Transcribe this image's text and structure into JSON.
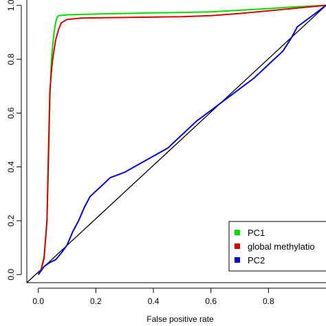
{
  "chart_data": {
    "type": "line",
    "title": "",
    "xlabel": "False positive rate",
    "ylabel": "",
    "xlim": [
      -0.04,
      1.0
    ],
    "ylim": [
      -0.03,
      1.02
    ],
    "x_ticks": [
      0.0,
      0.2,
      0.4,
      0.6,
      0.8
    ],
    "x_tick_labels": [
      "0.0",
      "0.2",
      "0.4",
      "0.6",
      "0.8"
    ],
    "y_ticks": [
      0.0,
      0.2,
      0.4,
      0.6,
      0.8,
      1.0
    ],
    "y_tick_labels": [
      "0.0",
      "0.2",
      "0.4",
      "0.6",
      "0.8",
      "1.0"
    ],
    "grid": false,
    "legend_position": "bottom-right",
    "series": [
      {
        "name": "PC1",
        "color": "#00dd00",
        "points": [
          [
            0.0,
            0.0
          ],
          [
            0.01,
            0.02
          ],
          [
            0.02,
            0.07
          ],
          [
            0.03,
            0.2
          ],
          [
            0.035,
            0.4
          ],
          [
            0.04,
            0.65
          ],
          [
            0.045,
            0.79
          ],
          [
            0.05,
            0.85
          ],
          [
            0.055,
            0.9
          ],
          [
            0.06,
            0.935
          ],
          [
            0.065,
            0.955
          ],
          [
            0.07,
            0.962
          ],
          [
            0.1,
            0.965
          ],
          [
            0.2,
            0.968
          ],
          [
            0.4,
            0.972
          ],
          [
            0.6,
            0.976
          ],
          [
            0.8,
            0.988
          ],
          [
            0.9,
            0.995
          ],
          [
            1.0,
            1.0
          ]
        ]
      },
      {
        "name": "global methylatio",
        "color": "#dd0000",
        "points": [
          [
            0.0,
            0.0
          ],
          [
            0.01,
            0.02
          ],
          [
            0.02,
            0.06
          ],
          [
            0.03,
            0.2
          ],
          [
            0.035,
            0.45
          ],
          [
            0.04,
            0.68
          ],
          [
            0.045,
            0.75
          ],
          [
            0.05,
            0.8
          ],
          [
            0.06,
            0.87
          ],
          [
            0.07,
            0.91
          ],
          [
            0.08,
            0.935
          ],
          [
            0.1,
            0.948
          ],
          [
            0.15,
            0.953
          ],
          [
            0.3,
            0.955
          ],
          [
            0.5,
            0.958
          ],
          [
            0.6,
            0.962
          ],
          [
            0.7,
            0.97
          ],
          [
            0.8,
            0.98
          ],
          [
            0.9,
            0.99
          ],
          [
            1.0,
            1.0
          ]
        ]
      },
      {
        "name": "PC2",
        "color": "#0000dd",
        "points": [
          [
            0.0,
            0.0
          ],
          [
            0.02,
            0.03
          ],
          [
            0.04,
            0.045
          ],
          [
            0.06,
            0.055
          ],
          [
            0.08,
            0.08
          ],
          [
            0.1,
            0.11
          ],
          [
            0.12,
            0.16
          ],
          [
            0.14,
            0.2
          ],
          [
            0.16,
            0.25
          ],
          [
            0.18,
            0.29
          ],
          [
            0.2,
            0.31
          ],
          [
            0.22,
            0.33
          ],
          [
            0.25,
            0.36
          ],
          [
            0.3,
            0.38
          ],
          [
            0.35,
            0.41
          ],
          [
            0.4,
            0.44
          ],
          [
            0.45,
            0.47
          ],
          [
            0.5,
            0.52
          ],
          [
            0.55,
            0.57
          ],
          [
            0.6,
            0.61
          ],
          [
            0.65,
            0.65
          ],
          [
            0.7,
            0.69
          ],
          [
            0.75,
            0.73
          ],
          [
            0.8,
            0.78
          ],
          [
            0.85,
            0.83
          ],
          [
            0.88,
            0.88
          ],
          [
            0.9,
            0.92
          ],
          [
            0.95,
            0.96
          ],
          [
            1.0,
            1.0
          ]
        ]
      }
    ],
    "reference_line": {
      "color": "#000000",
      "points": [
        [
          -0.04,
          -0.03
        ],
        [
          1.0,
          1.0
        ]
      ]
    }
  }
}
